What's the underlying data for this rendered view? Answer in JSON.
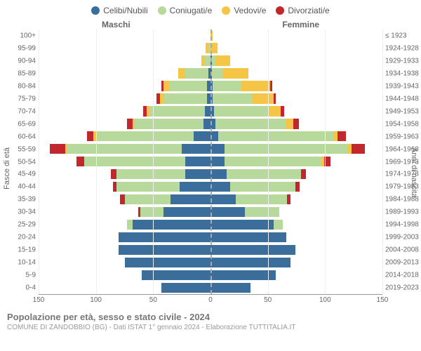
{
  "legend": {
    "items": [
      {
        "label": "Celibi/Nubili",
        "color": "#3b6e9a"
      },
      {
        "label": "Coniugati/e",
        "color": "#b7d99b"
      },
      {
        "label": "Vedovi/e",
        "color": "#f5c646"
      },
      {
        "label": "Divorziati/e",
        "color": "#c1272d"
      }
    ]
  },
  "side_titles": {
    "male": "Maschi",
    "female": "Femmine"
  },
  "axis_titles": {
    "left": "Fasce di età",
    "right": "Anni di nascita"
  },
  "xaxis": {
    "ticks": [
      150,
      100,
      50,
      0,
      50,
      100,
      150
    ],
    "max": 150
  },
  "grid_steps": [
    -150,
    -100,
    -50,
    0,
    50,
    100,
    150
  ],
  "age_bands": [
    "0-4",
    "5-9",
    "10-14",
    "15-19",
    "20-24",
    "25-29",
    "30-34",
    "35-39",
    "40-44",
    "45-49",
    "50-54",
    "55-59",
    "60-64",
    "65-69",
    "70-74",
    "75-79",
    "80-84",
    "85-89",
    "90-94",
    "95-99",
    "100+"
  ],
  "birth_years": [
    "2019-2023",
    "2014-2018",
    "2009-2013",
    "2004-2008",
    "1999-2003",
    "1994-1998",
    "1989-1993",
    "1984-1988",
    "1979-1983",
    "1974-1978",
    "1969-1973",
    "1964-1968",
    "1959-1963",
    "1954-1958",
    "1949-1953",
    "1944-1948",
    "1939-1943",
    "1934-1938",
    "1929-1933",
    "1924-1928",
    "≤ 1923"
  ],
  "rows": [
    {
      "m": {
        "s": 43,
        "c": 0,
        "w": 0,
        "d": 0
      },
      "f": {
        "s": 35,
        "c": 0,
        "w": 0,
        "d": 0
      }
    },
    {
      "m": {
        "s": 60,
        "c": 0,
        "w": 0,
        "d": 0
      },
      "f": {
        "s": 57,
        "c": 0,
        "w": 0,
        "d": 0
      }
    },
    {
      "m": {
        "s": 75,
        "c": 0,
        "w": 0,
        "d": 0
      },
      "f": {
        "s": 70,
        "c": 0,
        "w": 0,
        "d": 0
      }
    },
    {
      "m": {
        "s": 80,
        "c": 0,
        "w": 0,
        "d": 0
      },
      "f": {
        "s": 74,
        "c": 0,
        "w": 0,
        "d": 0
      }
    },
    {
      "m": {
        "s": 80,
        "c": 0,
        "w": 0,
        "d": 0
      },
      "f": {
        "s": 66,
        "c": 0,
        "w": 0,
        "d": 0
      }
    },
    {
      "m": {
        "s": 68,
        "c": 5,
        "w": 0,
        "d": 0
      },
      "f": {
        "s": 55,
        "c": 8,
        "w": 0,
        "d": 0
      }
    },
    {
      "m": {
        "s": 41,
        "c": 20,
        "w": 0,
        "d": 2
      },
      "f": {
        "s": 30,
        "c": 30,
        "w": 0,
        "d": 0
      }
    },
    {
      "m": {
        "s": 35,
        "c": 40,
        "w": 0,
        "d": 4
      },
      "f": {
        "s": 22,
        "c": 45,
        "w": 0,
        "d": 3
      }
    },
    {
      "m": {
        "s": 27,
        "c": 55,
        "w": 0,
        "d": 3
      },
      "f": {
        "s": 17,
        "c": 57,
        "w": 0,
        "d": 4
      }
    },
    {
      "m": {
        "s": 22,
        "c": 60,
        "w": 0,
        "d": 5
      },
      "f": {
        "s": 14,
        "c": 65,
        "w": 0,
        "d": 4
      }
    },
    {
      "m": {
        "s": 22,
        "c": 88,
        "w": 0,
        "d": 7
      },
      "f": {
        "s": 12,
        "c": 85,
        "w": 2,
        "d": 6
      }
    },
    {
      "m": {
        "s": 25,
        "c": 100,
        "w": 2,
        "d": 13
      },
      "f": {
        "s": 12,
        "c": 108,
        "w": 3,
        "d": 12
      }
    },
    {
      "m": {
        "s": 15,
        "c": 85,
        "w": 2,
        "d": 6
      },
      "f": {
        "s": 7,
        "c": 100,
        "w": 4,
        "d": 7
      }
    },
    {
      "m": {
        "s": 6,
        "c": 60,
        "w": 2,
        "d": 5
      },
      "f": {
        "s": 4,
        "c": 62,
        "w": 6,
        "d": 5
      }
    },
    {
      "m": {
        "s": 5,
        "c": 48,
        "w": 3,
        "d": 3
      },
      "f": {
        "s": 3,
        "c": 48,
        "w": 10,
        "d": 3
      }
    },
    {
      "m": {
        "s": 3,
        "c": 38,
        "w": 3,
        "d": 3
      },
      "f": {
        "s": 2,
        "c": 35,
        "w": 18,
        "d": 2
      }
    },
    {
      "m": {
        "s": 3,
        "c": 33,
        "w": 5,
        "d": 2
      },
      "f": {
        "s": 2,
        "c": 25,
        "w": 25,
        "d": 2
      }
    },
    {
      "m": {
        "s": 2,
        "c": 20,
        "w": 6,
        "d": 0
      },
      "f": {
        "s": 1,
        "c": 10,
        "w": 22,
        "d": 0
      }
    },
    {
      "m": {
        "s": 0,
        "c": 5,
        "w": 3,
        "d": 0
      },
      "f": {
        "s": 1,
        "c": 3,
        "w": 13,
        "d": 0
      }
    },
    {
      "m": {
        "s": 0,
        "c": 2,
        "w": 2,
        "d": 0
      },
      "f": {
        "s": 0,
        "c": 0,
        "w": 6,
        "d": 0
      }
    },
    {
      "m": {
        "s": 0,
        "c": 0,
        "w": 0,
        "d": 0
      },
      "f": {
        "s": 0,
        "c": 0,
        "w": 2,
        "d": 0
      }
    }
  ],
  "colors": {
    "s": "#3b6e9a",
    "c": "#b7d99b",
    "w": "#f5c646",
    "d": "#c1272d",
    "grid": "#eeeeee"
  },
  "footer": {
    "title": "Popolazione per età, sesso e stato civile - 2024",
    "subtitle": "COMUNE DI ZANDOBBIO (BG) - Dati ISTAT 1° gennaio 2024 - Elaborazione TUTTITALIA.IT"
  }
}
